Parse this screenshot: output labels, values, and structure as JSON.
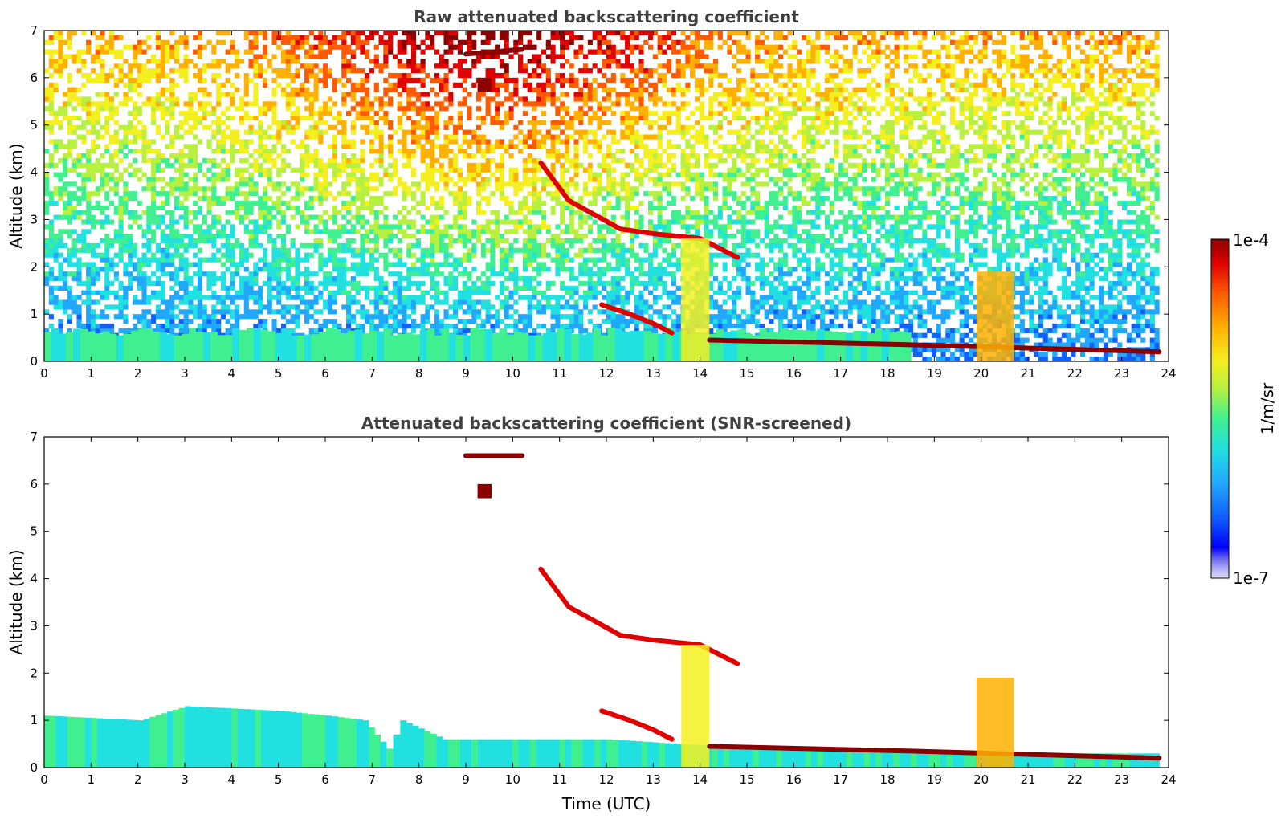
{
  "colors": {
    "colormap": [
      "#0000ff",
      "#1060ff",
      "#20a8ff",
      "#20e0e0",
      "#40f090",
      "#b8f040",
      "#f4f020",
      "#ffb000",
      "#ff5a00",
      "#e00000",
      "#8b0000"
    ],
    "low_end": [
      "#dcdcf4",
      "#a8a8f4",
      "#6060f0"
    ],
    "axes": "#000000",
    "title": "#404040"
  },
  "colorbar": {
    "max_label": "1e-4",
    "min_label": "1e-7",
    "unit_label": "1/m/sr",
    "scale": "log",
    "range": [
      1e-07,
      0.0001
    ]
  },
  "chart_data": [
    {
      "type": "heatmap",
      "title": "Raw attenuated backscattering coefficient",
      "xlabel": "",
      "ylabel": "Altitude (km)",
      "xlim": [
        0,
        24
      ],
      "ylim": [
        0,
        7
      ],
      "xticks": [
        0,
        1,
        2,
        3,
        4,
        5,
        6,
        7,
        8,
        9,
        10,
        11,
        12,
        13,
        14,
        15,
        16,
        17,
        18,
        19,
        20,
        21,
        22,
        23,
        24
      ],
      "yticks": [
        0,
        1,
        2,
        3,
        4,
        5,
        6,
        7
      ],
      "features": [
        {
          "kind": "noise_field",
          "description_level": "speckle increasing with altitude",
          "x": [
            0,
            23.8
          ],
          "y": [
            0,
            7
          ]
        },
        {
          "kind": "boundary_layer",
          "x": [
            0,
            18.5
          ],
          "y": [
            0,
            0.6
          ],
          "log10_value": -5.9
        },
        {
          "kind": "cloud_layer",
          "points": [
            [
              9.0,
              6.5
            ],
            [
              10.2,
              6.6
            ]
          ],
          "log10_value": -4.1
        },
        {
          "kind": "cloud_patch",
          "points": [
            [
              9.4,
              5.85
            ]
          ],
          "log10_value": -4.0
        },
        {
          "kind": "cloud_layer",
          "points": [
            [
              10.6,
              4.2
            ],
            [
              11.2,
              3.4
            ],
            [
              12.3,
              2.8
            ],
            [
              13.0,
              2.7
            ],
            [
              14.0,
              2.6
            ],
            [
              14.8,
              2.2
            ]
          ],
          "log10_value": -4.2
        },
        {
          "kind": "cloud_layer",
          "points": [
            [
              11.9,
              1.2
            ],
            [
              12.5,
              1.0
            ],
            [
              13.0,
              0.8
            ],
            [
              13.4,
              0.6
            ]
          ],
          "log10_value": -4.3
        },
        {
          "kind": "rain_shaft",
          "x": [
            13.6,
            14.2
          ],
          "y": [
            0,
            2.6
          ],
          "log10_value": -5.2
        },
        {
          "kind": "cloud_layer",
          "points": [
            [
              14.2,
              0.45
            ],
            [
              18.5,
              0.35
            ],
            [
              23.8,
              0.2
            ]
          ],
          "log10_value": -4.1
        },
        {
          "kind": "cloud_tower",
          "x": [
            19.9,
            20.7
          ],
          "y": [
            0,
            1.9
          ],
          "log10_value": -5.0
        }
      ]
    },
    {
      "type": "heatmap",
      "title": "Attenuated backscattering coefficient (SNR-screened)",
      "xlabel": "Time (UTC)",
      "ylabel": "Altitude (km)",
      "xlim": [
        0,
        24
      ],
      "ylim": [
        0,
        7
      ],
      "xticks": [
        0,
        1,
        2,
        3,
        4,
        5,
        6,
        7,
        8,
        9,
        10,
        11,
        12,
        13,
        14,
        15,
        16,
        17,
        18,
        19,
        20,
        21,
        22,
        23,
        24
      ],
      "yticks": [
        0,
        1,
        2,
        3,
        4,
        5,
        6,
        7
      ],
      "features": [
        {
          "kind": "boundary_layer_top",
          "points": [
            [
              0,
              1.1
            ],
            [
              2,
              1.0
            ],
            [
              3,
              1.3
            ],
            [
              5,
              1.2
            ],
            [
              6,
              1.1
            ],
            [
              6.8,
              1.0
            ],
            [
              7.3,
              0.4
            ],
            [
              7.6,
              1.0
            ],
            [
              8.5,
              0.6
            ],
            [
              9.0,
              0.6
            ],
            [
              10.0,
              0.6
            ],
            [
              12.0,
              0.6
            ],
            [
              13.5,
              0.5
            ],
            [
              18.5,
              0.3
            ],
            [
              23.8,
              0.3
            ]
          ],
          "log10_value": -6.0
        },
        {
          "kind": "cloud_layer",
          "points": [
            [
              9.0,
              6.6
            ],
            [
              10.2,
              6.6
            ]
          ],
          "log10_value": -4.1
        },
        {
          "kind": "cloud_patch",
          "points": [
            [
              9.4,
              5.85
            ]
          ],
          "log10_value": -4.0
        },
        {
          "kind": "cloud_layer",
          "points": [
            [
              10.6,
              4.2
            ],
            [
              11.2,
              3.4
            ],
            [
              12.3,
              2.8
            ],
            [
              13.0,
              2.7
            ],
            [
              14.0,
              2.6
            ],
            [
              14.8,
              2.2
            ]
          ],
          "log10_value": -4.2
        },
        {
          "kind": "cloud_layer",
          "points": [
            [
              11.9,
              1.2
            ],
            [
              12.5,
              1.0
            ],
            [
              13.0,
              0.8
            ],
            [
              13.4,
              0.6
            ]
          ],
          "log10_value": -4.3
        },
        {
          "kind": "rain_shaft",
          "x": [
            13.6,
            14.2
          ],
          "y": [
            0,
            2.6
          ],
          "log10_value": -5.2
        },
        {
          "kind": "cloud_layer",
          "points": [
            [
              14.2,
              0.45
            ],
            [
              18.5,
              0.35
            ],
            [
              23.8,
              0.2
            ]
          ],
          "log10_value": -4.1
        },
        {
          "kind": "cloud_tower",
          "x": [
            19.9,
            20.7
          ],
          "y": [
            0,
            1.9
          ],
          "log10_value": -5.0
        }
      ]
    }
  ]
}
